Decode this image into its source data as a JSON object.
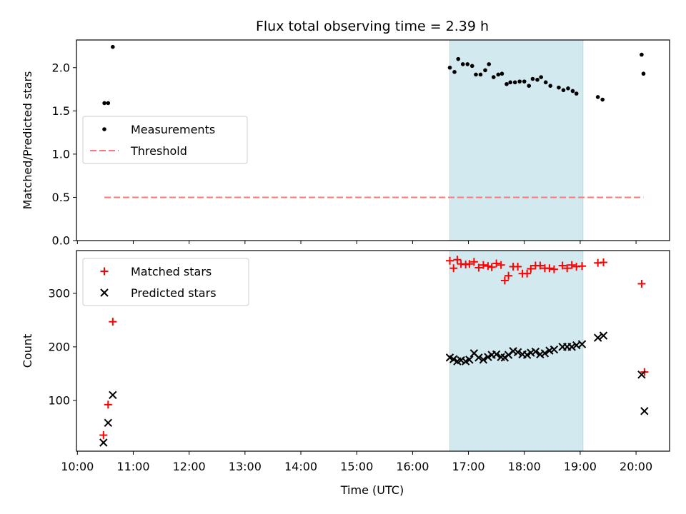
{
  "chart_data": {
    "type": "scatter",
    "title": "Flux total observing time = 2.39 h",
    "xlabel": "Time (UTC)",
    "x_ticks": [
      "10:00",
      "11:00",
      "12:00",
      "13:00",
      "14:00",
      "15:00",
      "16:00",
      "17:00",
      "18:00",
      "19:00",
      "20:00"
    ],
    "xlim": [
      "09:59",
      "20:36"
    ],
    "shaded_interval": {
      "x": [
        "16:40",
        "19:03"
      ],
      "color": "#d3e9f0"
    },
    "panels": [
      {
        "ylabel": "Matched/Predicted stars",
        "ylim": [
          0,
          2.32
        ],
        "y_ticks": [
          "0.0",
          "0.5",
          "1.0",
          "1.5",
          "2.0"
        ],
        "legend": {
          "placement": "center-left",
          "entries": [
            "Measurements",
            "Threshold"
          ]
        },
        "series": [
          {
            "name": "Measurements",
            "kind": "scatter",
            "marker": "dot",
            "color": "#000000",
            "points": [
              [
                "10:29",
                1.59
              ],
              [
                "10:33",
                1.59
              ],
              [
                "10:38",
                2.24
              ],
              [
                "16:40",
                2.0
              ],
              [
                "16:45",
                1.95
              ],
              [
                "16:49",
                2.1
              ],
              [
                "16:54",
                2.04
              ],
              [
                "16:59",
                2.04
              ],
              [
                "17:04",
                2.02
              ],
              [
                "17:08",
                1.92
              ],
              [
                "17:13",
                1.92
              ],
              [
                "17:18",
                1.97
              ],
              [
                "17:22",
                2.04
              ],
              [
                "17:27",
                1.89
              ],
              [
                "17:32",
                1.92
              ],
              [
                "17:36",
                1.93
              ],
              [
                "17:41",
                1.81
              ],
              [
                "17:45",
                1.83
              ],
              [
                "17:50",
                1.83
              ],
              [
                "17:55",
                1.84
              ],
              [
                "18:00",
                1.84
              ],
              [
                "18:05",
                1.79
              ],
              [
                "18:09",
                1.87
              ],
              [
                "18:14",
                1.86
              ],
              [
                "18:18",
                1.89
              ],
              [
                "18:23",
                1.83
              ],
              [
                "18:28",
                1.79
              ],
              [
                "18:37",
                1.77
              ],
              [
                "18:42",
                1.74
              ],
              [
                "18:47",
                1.76
              ],
              [
                "18:52",
                1.73
              ],
              [
                "18:56",
                1.7
              ],
              [
                "19:19",
                1.66
              ],
              [
                "19:24",
                1.63
              ],
              [
                "20:06",
                2.15
              ],
              [
                "20:08",
                1.93
              ]
            ]
          },
          {
            "name": "Threshold",
            "kind": "line",
            "style": "dashed",
            "color": "#ff7777",
            "points": [
              [
                "10:29",
                0.5
              ],
              [
                "20:08",
                0.5
              ]
            ]
          }
        ]
      },
      {
        "ylabel": "Count",
        "ylim": [
          5,
          380
        ],
        "y_ticks": [
          "100",
          "200",
          "300"
        ],
        "legend": {
          "placement": "top-left",
          "entries": [
            "Matched stars",
            "Predicted stars"
          ]
        },
        "series": [
          {
            "name": "Matched stars",
            "kind": "scatter",
            "marker": "plus",
            "color": "#ff0000",
            "points": [
              [
                "10:28",
                35
              ],
              [
                "10:33",
                92
              ],
              [
                "10:38",
                247
              ],
              [
                "16:40",
                361
              ],
              [
                "16:44",
                347
              ],
              [
                "16:48",
                363
              ],
              [
                "16:52",
                355
              ],
              [
                "16:57",
                354
              ],
              [
                "17:01",
                355
              ],
              [
                "17:06",
                359
              ],
              [
                "17:11",
                348
              ],
              [
                "17:16",
                353
              ],
              [
                "17:21",
                351
              ],
              [
                "17:25",
                349
              ],
              [
                "17:30",
                356
              ],
              [
                "17:35",
                353
              ],
              [
                "17:39",
                324
              ],
              [
                "17:43",
                333
              ],
              [
                "17:48",
                350
              ],
              [
                "17:53",
                350
              ],
              [
                "17:58",
                337
              ],
              [
                "18:03",
                337
              ],
              [
                "18:07",
                346
              ],
              [
                "18:12",
                352
              ],
              [
                "18:17",
                352
              ],
              [
                "18:22",
                347
              ],
              [
                "18:27",
                347
              ],
              [
                "18:32",
                345
              ],
              [
                "18:41",
                352
              ],
              [
                "18:46",
                347
              ],
              [
                "18:51",
                353
              ],
              [
                "18:56",
                350
              ],
              [
                "19:02",
                351
              ],
              [
                "19:19",
                357
              ],
              [
                "19:25",
                358
              ],
              [
                "20:06",
                318
              ],
              [
                "20:09",
                153
              ]
            ]
          },
          {
            "name": "Predicted stars",
            "kind": "scatter",
            "marker": "x",
            "color": "#000000",
            "points": [
              [
                "10:28",
                21
              ],
              [
                "10:33",
                58
              ],
              [
                "10:38",
                110
              ],
              [
                "16:40",
                180
              ],
              [
                "16:44",
                177
              ],
              [
                "16:48",
                173
              ],
              [
                "16:52",
                175
              ],
              [
                "16:57",
                173
              ],
              [
                "17:01",
                176
              ],
              [
                "17:06",
                188
              ],
              [
                "17:11",
                180
              ],
              [
                "17:16",
                176
              ],
              [
                "17:21",
                181
              ],
              [
                "17:25",
                185
              ],
              [
                "17:30",
                186
              ],
              [
                "17:35",
                181
              ],
              [
                "17:39",
                180
              ],
              [
                "17:43",
                185
              ],
              [
                "17:48",
                192
              ],
              [
                "17:53",
                190
              ],
              [
                "17:58",
                186
              ],
              [
                "18:03",
                185
              ],
              [
                "18:07",
                189
              ],
              [
                "18:12",
                191
              ],
              [
                "18:17",
                186
              ],
              [
                "18:22",
                188
              ],
              [
                "18:27",
                193
              ],
              [
                "18:32",
                195
              ],
              [
                "18:41",
                200
              ],
              [
                "18:46",
                200
              ],
              [
                "18:51",
                200
              ],
              [
                "18:56",
                203
              ],
              [
                "19:02",
                205
              ],
              [
                "19:19",
                217
              ],
              [
                "19:25",
                221
              ],
              [
                "20:06",
                148
              ],
              [
                "20:09",
                80
              ]
            ]
          }
        ]
      }
    ]
  }
}
